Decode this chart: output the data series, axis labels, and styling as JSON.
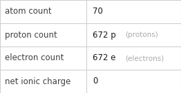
{
  "rows": [
    {
      "label": "atom count",
      "value": "70",
      "value_suffix": "",
      "annotation": ""
    },
    {
      "label": "proton count",
      "value": "672 p",
      "value_suffix": "",
      "annotation": "(protons)"
    },
    {
      "label": "electron count",
      "value": "672 e",
      "value_suffix": "",
      "annotation": "(electrons)"
    },
    {
      "label": "net ionic charge",
      "value": "0",
      "value_suffix": "",
      "annotation": ""
    }
  ],
  "col_split": 0.478,
  "background_color": "#ffffff",
  "border_color": "#d0d0d0",
  "label_fontsize": 8.5,
  "value_fontsize": 8.5,
  "annotation_fontsize": 7.5,
  "label_color": "#404040",
  "value_color": "#1a1a1a",
  "annotation_color": "#aaaaaa"
}
